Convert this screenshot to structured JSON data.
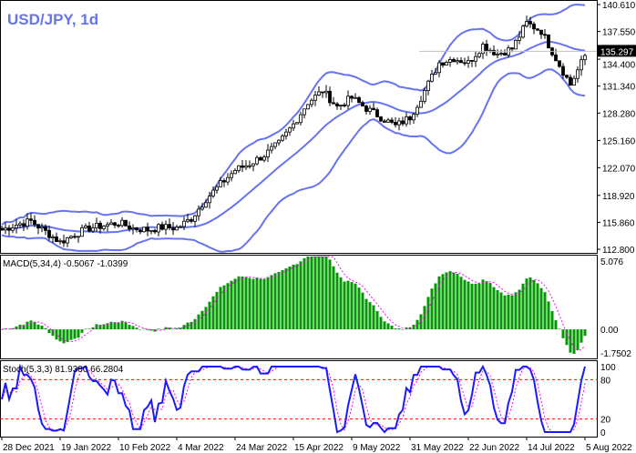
{
  "chart_data": {
    "type": "candlestick",
    "title": "USD/JPY, 1d",
    "symbol": "USD/JPY",
    "timeframe": "1d",
    "current_price": "135.297",
    "close_samples_every_4_bars": [
      115.0,
      115.6,
      116.0,
      114.8,
      113.6,
      114.5,
      115.2,
      115.5,
      115.8,
      115.2,
      115.0,
      115.3,
      115.2,
      116.3,
      118.5,
      120.2,
      121.8,
      122.5,
      123.5,
      124.8,
      127.0,
      129.5,
      130.8,
      129.0,
      130.0,
      128.8,
      127.8,
      126.8,
      127.8,
      130.8,
      134.0,
      134.5,
      134.0,
      136.0,
      135.0,
      135.6,
      138.5,
      137.6,
      134.5,
      131.5,
      134.8
    ],
    "x_ticks": [
      "28 Dec 2021",
      "19 Jan 2022",
      "10 Feb 2022",
      "4 Mar 2022",
      "24 Mar 2022",
      "15 Apr 2022",
      "9 May 2022",
      "31 May 2022",
      "22 Jun 2022",
      "14 Jul 2022",
      "5 Aug 2022"
    ],
    "price_axis": {
      "ticks": [
        "140.610",
        "137.550",
        "134.400",
        "131.340",
        "128.280",
        "125.160",
        "122.070",
        "118.920",
        "115.860",
        "112.800"
      ],
      "range": [
        112.8,
        140.61
      ]
    },
    "overlays": [
      {
        "type": "bollinger",
        "period": 20,
        "deviations": 2,
        "color": "#6673f2"
      }
    ],
    "macd": {
      "label": "MACD(5,34,4) -0.5067 -1.0399",
      "ticks": [
        "5.076",
        "0.00",
        "-1.7502"
      ],
      "range": [
        -1.7502,
        5.076
      ],
      "histogram_color": "#009900",
      "signal_color": "#ff00ff"
    },
    "stoch": {
      "label": "Stoch(5,3,3) 81.9380 66.2804",
      "ticks": [
        "100",
        "80",
        "20",
        "0"
      ],
      "levels": [
        20,
        80
      ],
      "main_color": "#1a1aff",
      "signal_color": "#ff00ff",
      "level_color": "#ff0000"
    },
    "colors": {
      "bull_body": "#ffffff",
      "bear_body": "#000000",
      "title": "#6673f2"
    }
  }
}
